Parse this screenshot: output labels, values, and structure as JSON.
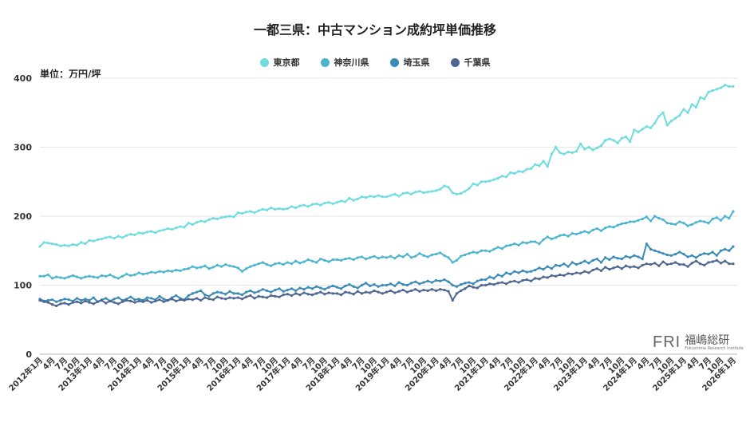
{
  "chart_data": {
    "type": "line",
    "title": "一都三県：中古マンション成約坪単価推移",
    "ylabel": "単位：万円/坪",
    "xlabel": "",
    "ylim": [
      0,
      400
    ],
    "y_ticks": [
      "0",
      "100",
      "200",
      "300",
      "400"
    ],
    "grid": true,
    "legend": "top",
    "x_tick_labels": [
      "2012年1月",
      "4月",
      "7月",
      "10月",
      "2013年1月",
      "4月",
      "7月",
      "10月",
      "2014年1月",
      "4月",
      "7月",
      "10月",
      "2015年1月",
      "4月",
      "7月",
      "10月",
      "2016年1月",
      "4月",
      "7月",
      "10月",
      "2017年1月",
      "4月",
      "7月",
      "10月",
      "2018年1月",
      "4月",
      "7月",
      "10月",
      "2019年1月",
      "4月",
      "7月",
      "10月",
      "2020年1月",
      "4月",
      "7月",
      "10月",
      "2021年1月",
      "4月",
      "7月",
      "10月",
      "2022年1月",
      "4月",
      "7月",
      "10月",
      "2023年1月",
      "4月",
      "7月",
      "10月",
      "2024年1月",
      "4月",
      "7月",
      "10月",
      "2025年1月",
      "4月",
      "7月",
      "10月",
      "2026年1月"
    ],
    "series": [
      {
        "name": "東京都",
        "color": "#6fdde0",
        "values": [
          156,
          162,
          161,
          160,
          159,
          157,
          158,
          157,
          159,
          158,
          162,
          160,
          165,
          164,
          166,
          167,
          169,
          170,
          168,
          171,
          169,
          172,
          174,
          173,
          176,
          175,
          177,
          178,
          176,
          179,
          180,
          182,
          181,
          183,
          185,
          184,
          190,
          188,
          191,
          193,
          192,
          195,
          197,
          196,
          198,
          199,
          200,
          199,
          205,
          204,
          206,
          207,
          205,
          208,
          210,
          209,
          212,
          210,
          211,
          210,
          211,
          214,
          212,
          215,
          216,
          214,
          217,
          218,
          216,
          219,
          220,
          218,
          220,
          222,
          221,
          226,
          223,
          225,
          228,
          227,
          229,
          228,
          230,
          228,
          228,
          230,
          232,
          229,
          233,
          234,
          232,
          235,
          236,
          234,
          235,
          236,
          237,
          239,
          244,
          242,
          234,
          232,
          233,
          236,
          240,
          247,
          245,
          250,
          250,
          251,
          253,
          255,
          258,
          257,
          263,
          262,
          265,
          264,
          268,
          269,
          275,
          273,
          280,
          272,
          290,
          300,
          292,
          290,
          293,
          292,
          294,
          305,
          297,
          300,
          296,
          299,
          302,
          310,
          312,
          310,
          306,
          313,
          315,
          308,
          325,
          322,
          326,
          330,
          328,
          335,
          345,
          350,
          332,
          338,
          342,
          346,
          355,
          350,
          362,
          358,
          372,
          370,
          380,
          382,
          384,
          386,
          390,
          388,
          388
        ]
      },
      {
        "name": "神奈川県",
        "color": "#4bb5cf",
        "values": [
          113,
          113,
          115,
          110,
          112,
          111,
          110,
          112,
          114,
          112,
          110,
          112,
          113,
          112,
          111,
          114,
          113,
          115,
          112,
          110,
          113,
          116,
          114,
          115,
          118,
          116,
          117,
          119,
          118,
          120,
          119,
          121,
          120,
          122,
          121,
          123,
          124,
          127,
          125,
          126,
          128,
          124,
          126,
          129,
          127,
          130,
          128,
          127,
          125,
          120,
          124,
          127,
          129,
          131,
          133,
          130,
          128,
          131,
          132,
          130,
          133,
          131,
          135,
          132,
          134,
          137,
          135,
          133,
          138,
          136,
          134,
          137,
          137,
          136,
          138,
          139,
          137,
          140,
          141,
          138,
          140,
          142,
          139,
          141,
          140,
          142,
          139,
          143,
          141,
          145,
          140,
          142,
          146,
          143,
          141,
          144,
          145,
          147,
          143,
          140,
          133,
          136,
          142,
          144,
          146,
          148,
          147,
          150,
          150,
          149,
          152,
          155,
          153,
          157,
          158,
          160,
          158,
          162,
          161,
          163,
          163,
          160,
          166,
          170,
          167,
          169,
          172,
          173,
          171,
          175,
          174,
          176,
          178,
          176,
          180,
          182,
          179,
          183,
          185,
          184,
          187,
          189,
          190,
          192,
          192,
          194,
          196,
          199,
          193,
          200,
          197,
          195,
          190,
          189,
          188,
          192,
          190,
          186,
          188,
          191,
          193,
          192,
          190,
          196,
          198,
          194,
          200,
          197,
          207
        ]
      },
      {
        "name": "埼玉県",
        "color": "#3a8bb5",
        "values": [
          80,
          77,
          78,
          79,
          76,
          78,
          80,
          79,
          77,
          81,
          78,
          80,
          78,
          82,
          76,
          79,
          81,
          77,
          80,
          82,
          78,
          80,
          83,
          79,
          80,
          78,
          82,
          81,
          79,
          84,
          80,
          78,
          82,
          85,
          81,
          79,
          85,
          88,
          90,
          92,
          86,
          84,
          88,
          90,
          89,
          87,
          91,
          88,
          88,
          86,
          90,
          92,
          89,
          91,
          94,
          92,
          90,
          93,
          95,
          91,
          93,
          95,
          92,
          96,
          94,
          97,
          95,
          98,
          96,
          94,
          97,
          99,
          97,
          95,
          99,
          101,
          98,
          96,
          100,
          103,
          99,
          101,
          98,
          100,
          100,
          102,
          99,
          104,
          101,
          100,
          103,
          105,
          102,
          104,
          106,
          104,
          107,
          106,
          108,
          105,
          100,
          98,
          101,
          103,
          104,
          102,
          106,
          108,
          108,
          112,
          110,
          115,
          113,
          118,
          116,
          120,
          118,
          121,
          119,
          120,
          122,
          125,
          123,
          127,
          124,
          129,
          128,
          131,
          127,
          133,
          130,
          132,
          135,
          132,
          136,
          138,
          133,
          140,
          137,
          141,
          139,
          138,
          142,
          140,
          143,
          141,
          138,
          160,
          152,
          150,
          148,
          146,
          144,
          143,
          145,
          148,
          145,
          141,
          143,
          140,
          144,
          146,
          145,
          148,
          143,
          150,
          152,
          150,
          156
        ]
      },
      {
        "name": "千葉県",
        "color": "#4f6690",
        "values": [
          78,
          76,
          75,
          72,
          70,
          73,
          74,
          72,
          75,
          76,
          74,
          77,
          75,
          73,
          76,
          78,
          74,
          77,
          75,
          73,
          76,
          78,
          77,
          75,
          77,
          76,
          78,
          75,
          77,
          79,
          76,
          78,
          80,
          77,
          79,
          78,
          80,
          79,
          81,
          78,
          82,
          80,
          79,
          83,
          81,
          80,
          82,
          81,
          82,
          80,
          83,
          85,
          81,
          84,
          83,
          82,
          85,
          84,
          83,
          86,
          87,
          85,
          88,
          86,
          89,
          87,
          86,
          88,
          90,
          87,
          89,
          88,
          88,
          86,
          90,
          89,
          87,
          91,
          88,
          90,
          89,
          92,
          90,
          88,
          90,
          92,
          89,
          91,
          93,
          90,
          92,
          94,
          91,
          93,
          92,
          94,
          92,
          94,
          93,
          91,
          78,
          88,
          92,
          95,
          99,
          97,
          96,
          100,
          100,
          102,
          101,
          103,
          104,
          102,
          105,
          106,
          104,
          107,
          108,
          106,
          110,
          109,
          112,
          111,
          114,
          113,
          115,
          114,
          117,
          116,
          118,
          117,
          120,
          118,
          122,
          124,
          121,
          126,
          123,
          125,
          127,
          124,
          128,
          126,
          127,
          125,
          129,
          131,
          130,
          132,
          128,
          134,
          130,
          131,
          133,
          130,
          130,
          127,
          132,
          135,
          131,
          129,
          133,
          134,
          136,
          132,
          135,
          131,
          131
        ]
      }
    ]
  },
  "logo": {
    "mark": "FRI",
    "kanji": "福嶋総研",
    "sub": "Fukushima Research Institute"
  }
}
